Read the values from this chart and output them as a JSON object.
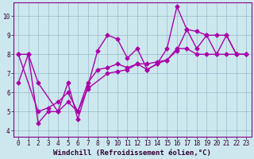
{
  "xlabel": "Windchill (Refroidissement éolien,°C)",
  "xlim": [
    -0.5,
    23.5
  ],
  "ylim": [
    3.7,
    10.7
  ],
  "yticks": [
    4,
    5,
    6,
    7,
    8,
    9,
    10
  ],
  "xticks": [
    0,
    1,
    2,
    3,
    4,
    5,
    6,
    7,
    8,
    9,
    10,
    11,
    12,
    13,
    14,
    15,
    16,
    17,
    18,
    19,
    20,
    21,
    22,
    23
  ],
  "bg_color": "#cce8ee",
  "line_color": "#aa00aa",
  "grid_color": "#99bbcc",
  "line1_x": [
    0,
    1,
    2,
    3,
    4,
    5,
    6,
    7,
    8,
    9,
    10,
    11,
    12,
    13,
    14,
    15,
    16,
    17,
    18,
    19,
    20,
    21,
    22,
    23
  ],
  "line1_y": [
    6.5,
    8.0,
    4.4,
    5.0,
    5.0,
    6.5,
    4.6,
    6.3,
    8.2,
    9.0,
    8.8,
    7.8,
    8.3,
    7.2,
    7.5,
    8.3,
    10.5,
    9.3,
    9.2,
    9.0,
    8.0,
    9.0,
    8.0,
    8.0
  ],
  "line2_x": [
    0,
    1,
    2,
    4,
    5,
    6,
    7,
    9,
    10,
    11,
    12,
    13,
    14,
    15,
    16,
    17,
    18,
    19,
    20,
    21,
    22,
    23
  ],
  "line2_y": [
    8.0,
    8.0,
    6.5,
    5.0,
    5.5,
    5.0,
    6.2,
    7.0,
    7.1,
    7.2,
    7.5,
    7.2,
    7.5,
    7.7,
    8.2,
    9.3,
    8.3,
    9.0,
    9.0,
    9.0,
    8.0,
    8.0
  ],
  "line3_x": [
    0,
    2,
    3,
    4,
    5,
    6,
    7,
    8,
    9,
    10,
    11,
    12,
    13,
    14,
    15,
    16,
    17,
    18,
    19,
    20,
    21,
    22,
    23
  ],
  "line3_y": [
    8.0,
    5.0,
    5.2,
    5.5,
    6.0,
    5.0,
    6.5,
    7.2,
    7.3,
    7.5,
    7.3,
    7.5,
    7.5,
    7.6,
    7.7,
    8.3,
    8.3,
    8.0,
    8.0,
    8.0,
    8.0,
    8.0,
    8.0
  ],
  "marker": "D",
  "markersize": 2.5,
  "linewidth": 1.0,
  "tick_fontsize": 5.5,
  "label_fontsize": 6.5
}
